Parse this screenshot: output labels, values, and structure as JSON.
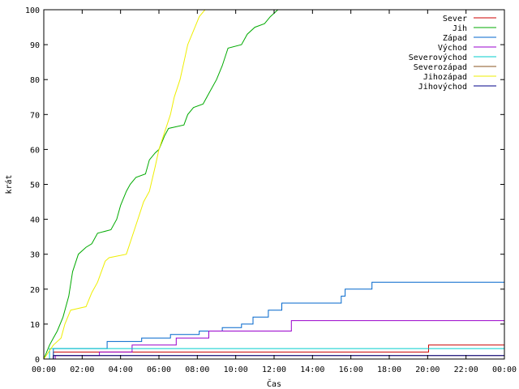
{
  "chart_data": {
    "type": "line",
    "title": "",
    "xlabel": "Čas",
    "ylabel": "krát",
    "xlim": [
      0,
      24
    ],
    "ylim": [
      0,
      100
    ],
    "x_ticks": [
      {
        "v": 0,
        "label": "00:00"
      },
      {
        "v": 2,
        "label": "02:00"
      },
      {
        "v": 4,
        "label": "04:00"
      },
      {
        "v": 6,
        "label": "06:00"
      },
      {
        "v": 8,
        "label": "08:00"
      },
      {
        "v": 10,
        "label": "10:00"
      },
      {
        "v": 12,
        "label": "12:00"
      },
      {
        "v": 14,
        "label": "14:00"
      },
      {
        "v": 16,
        "label": "16:00"
      },
      {
        "v": 18,
        "label": "18:00"
      },
      {
        "v": 20,
        "label": "20:00"
      },
      {
        "v": 22,
        "label": "22:00"
      },
      {
        "v": 24,
        "label": "00:00"
      }
    ],
    "y_ticks": [
      0,
      10,
      20,
      30,
      40,
      50,
      60,
      70,
      80,
      90,
      100
    ],
    "grid": false,
    "legend_position": "top-right",
    "series": [
      {
        "name": "Sever",
        "color": "#cc0000",
        "step": true,
        "points": [
          [
            0.1,
            0
          ],
          [
            0.5,
            2
          ],
          [
            20.0,
            2
          ],
          [
            20.05,
            4
          ],
          [
            24,
            4
          ]
        ]
      },
      {
        "name": "Jih",
        "color": "#00aa00",
        "step": false,
        "points": [
          [
            0,
            0
          ],
          [
            0.3,
            4
          ],
          [
            0.5,
            6
          ],
          [
            0.7,
            8
          ],
          [
            1.0,
            12
          ],
          [
            1.3,
            18
          ],
          [
            1.5,
            25
          ],
          [
            1.8,
            30
          ],
          [
            2.2,
            32
          ],
          [
            2.5,
            33
          ],
          [
            2.8,
            36
          ],
          [
            3.5,
            37
          ],
          [
            3.8,
            40
          ],
          [
            4.0,
            44
          ],
          [
            4.3,
            48
          ],
          [
            4.5,
            50
          ],
          [
            4.8,
            52
          ],
          [
            5.3,
            53
          ],
          [
            5.5,
            57
          ],
          [
            5.8,
            59
          ],
          [
            6.0,
            60
          ],
          [
            6.3,
            64
          ],
          [
            6.5,
            66
          ],
          [
            7.3,
            67
          ],
          [
            7.5,
            70
          ],
          [
            7.8,
            72
          ],
          [
            8.3,
            73
          ],
          [
            8.6,
            76
          ],
          [
            9.0,
            80
          ],
          [
            9.3,
            84
          ],
          [
            9.6,
            89
          ],
          [
            10.3,
            90
          ],
          [
            10.6,
            93
          ],
          [
            11.0,
            95
          ],
          [
            11.5,
            96
          ],
          [
            11.8,
            98
          ],
          [
            12.2,
            100
          ]
        ]
      },
      {
        "name": "Západ",
        "color": "#0066cc",
        "step": true,
        "points": [
          [
            0.1,
            0
          ],
          [
            0.5,
            3
          ],
          [
            3.2,
            3
          ],
          [
            3.3,
            5
          ],
          [
            5.0,
            5
          ],
          [
            5.1,
            6
          ],
          [
            6.5,
            6
          ],
          [
            6.6,
            7
          ],
          [
            8.0,
            7
          ],
          [
            8.1,
            8
          ],
          [
            9.2,
            8
          ],
          [
            9.3,
            9
          ],
          [
            10.2,
            9
          ],
          [
            10.3,
            10
          ],
          [
            10.8,
            10
          ],
          [
            10.9,
            12
          ],
          [
            11.6,
            12
          ],
          [
            11.7,
            14
          ],
          [
            12.3,
            14
          ],
          [
            12.4,
            16
          ],
          [
            15.4,
            16
          ],
          [
            15.5,
            18
          ],
          [
            15.7,
            20
          ],
          [
            17.0,
            20
          ],
          [
            17.1,
            22
          ],
          [
            24,
            22
          ]
        ]
      },
      {
        "name": "Východ",
        "color": "#9900cc",
        "step": true,
        "points": [
          [
            0.1,
            0
          ],
          [
            0.6,
            1
          ],
          [
            2.8,
            1
          ],
          [
            2.9,
            2
          ],
          [
            4.5,
            2
          ],
          [
            4.6,
            4
          ],
          [
            6.8,
            4
          ],
          [
            6.9,
            6
          ],
          [
            8.5,
            6
          ],
          [
            8.6,
            8
          ],
          [
            12.8,
            8
          ],
          [
            12.9,
            11
          ],
          [
            24,
            11
          ]
        ]
      },
      {
        "name": "Severovýchod",
        "color": "#00cccc",
        "step": true,
        "points": [
          [
            0.1,
            0
          ],
          [
            0.3,
            3
          ],
          [
            24,
            3
          ]
        ]
      },
      {
        "name": "Severozápad",
        "color": "#885522",
        "step": true,
        "points": [
          [
            0.1,
            0
          ],
          [
            0.5,
            1
          ],
          [
            24,
            1
          ]
        ]
      },
      {
        "name": "Jihozápad",
        "color": "#eeee00",
        "step": false,
        "points": [
          [
            0,
            0
          ],
          [
            0.5,
            4
          ],
          [
            0.9,
            6
          ],
          [
            1.1,
            10
          ],
          [
            1.4,
            14
          ],
          [
            2.2,
            15
          ],
          [
            2.5,
            19
          ],
          [
            2.8,
            22
          ],
          [
            3.2,
            28
          ],
          [
            3.4,
            29
          ],
          [
            4.3,
            30
          ],
          [
            4.6,
            35
          ],
          [
            4.9,
            40
          ],
          [
            5.2,
            45
          ],
          [
            5.5,
            48
          ],
          [
            5.8,
            55
          ],
          [
            6.0,
            60
          ],
          [
            6.3,
            65
          ],
          [
            6.6,
            70
          ],
          [
            6.8,
            75
          ],
          [
            7.1,
            80
          ],
          [
            7.3,
            85
          ],
          [
            7.5,
            90
          ],
          [
            7.8,
            94
          ],
          [
            8.1,
            98
          ],
          [
            8.4,
            100
          ]
        ]
      },
      {
        "name": "Jihovýchod",
        "color": "#000088",
        "step": true,
        "points": [
          [
            0.1,
            0
          ],
          [
            0.5,
            1
          ],
          [
            24,
            1
          ]
        ]
      }
    ]
  }
}
